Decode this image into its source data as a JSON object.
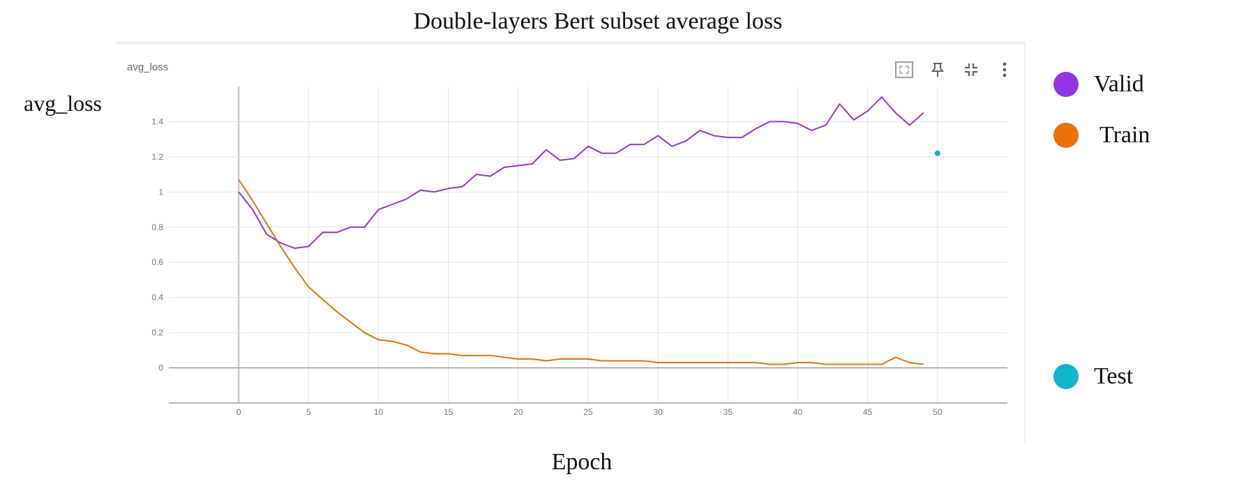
{
  "figure": {
    "title": "Double-layers Bert subset average loss",
    "ylabel": "avg_loss",
    "xlabel": "Epoch"
  },
  "card": {
    "title": "avg_loss",
    "tools": [
      {
        "name": "fit-domain-icon"
      },
      {
        "name": "pin-icon"
      },
      {
        "name": "collapse-icon"
      },
      {
        "name": "more-vert-icon"
      }
    ]
  },
  "chart_data": {
    "type": "line",
    "title": "avg_loss",
    "xlabel": "Epoch",
    "ylabel": "avg_loss",
    "xlim": [
      -5,
      55
    ],
    "ylim": [
      -0.2,
      1.6
    ],
    "xticks": [
      0,
      5,
      10,
      15,
      20,
      25,
      30,
      35,
      40,
      45,
      50
    ],
    "yticks": [
      0,
      0.2,
      0.4,
      0.6,
      0.8,
      1,
      1.2,
      1.4
    ],
    "ytick_labels": [
      "0",
      "0.2",
      "0.4",
      "0.6",
      "0.8",
      "1",
      "1.2",
      "1.4"
    ],
    "grid": true,
    "legend_position": "right",
    "series": [
      {
        "name": "Valid",
        "color": "#9334e6",
        "x": [
          0,
          1,
          2,
          3,
          4,
          5,
          6,
          7,
          8,
          9,
          10,
          11,
          12,
          13,
          14,
          15,
          16,
          17,
          18,
          19,
          20,
          21,
          22,
          23,
          24,
          25,
          26,
          27,
          28,
          29,
          30,
          31,
          32,
          33,
          34,
          35,
          36,
          37,
          38,
          39,
          40,
          41,
          42,
          43,
          44,
          45,
          46,
          47,
          48,
          49
        ],
        "y": [
          1.0,
          0.9,
          0.76,
          0.71,
          0.68,
          0.69,
          0.77,
          0.77,
          0.8,
          0.8,
          0.9,
          0.93,
          0.96,
          1.01,
          1.0,
          1.02,
          1.03,
          1.1,
          1.09,
          1.14,
          1.15,
          1.16,
          1.24,
          1.18,
          1.19,
          1.26,
          1.22,
          1.22,
          1.27,
          1.27,
          1.32,
          1.26,
          1.29,
          1.35,
          1.32,
          1.31,
          1.31,
          1.36,
          1.4,
          1.4,
          1.39,
          1.35,
          1.38,
          1.5,
          1.41,
          1.46,
          1.54,
          1.45,
          1.38,
          1.45
        ]
      },
      {
        "name": "Train",
        "color": "#e8710a",
        "x": [
          0,
          1,
          2,
          3,
          4,
          5,
          6,
          7,
          8,
          9,
          10,
          11,
          12,
          13,
          14,
          15,
          16,
          17,
          18,
          19,
          20,
          21,
          22,
          23,
          24,
          25,
          26,
          27,
          28,
          29,
          30,
          31,
          32,
          33,
          34,
          35,
          36,
          37,
          38,
          39,
          40,
          41,
          42,
          43,
          44,
          45,
          46,
          47,
          48,
          49
        ],
        "y": [
          1.07,
          0.95,
          0.82,
          0.69,
          0.57,
          0.46,
          0.39,
          0.32,
          0.26,
          0.2,
          0.16,
          0.15,
          0.13,
          0.09,
          0.08,
          0.08,
          0.07,
          0.07,
          0.07,
          0.06,
          0.05,
          0.05,
          0.04,
          0.05,
          0.05,
          0.05,
          0.04,
          0.04,
          0.04,
          0.04,
          0.03,
          0.03,
          0.03,
          0.03,
          0.03,
          0.03,
          0.03,
          0.03,
          0.02,
          0.02,
          0.03,
          0.03,
          0.02,
          0.02,
          0.02,
          0.02,
          0.02,
          0.06,
          0.03,
          0.02
        ]
      },
      {
        "name": "Test",
        "color": "#12b5cb",
        "x": [
          50
        ],
        "y": [
          1.22
        ]
      }
    ]
  }
}
